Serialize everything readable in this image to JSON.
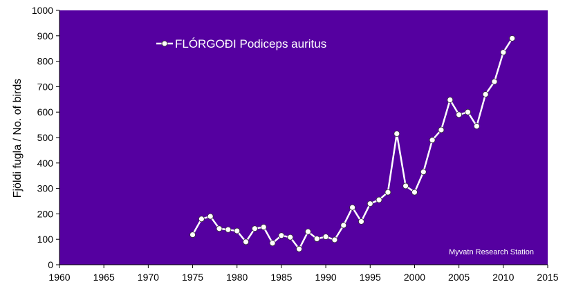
{
  "chart_data": {
    "type": "line",
    "legend_label": "FLÓRGOÐI Podiceps auritus",
    "legend_position": "top-left",
    "ylabel": "Fjöldi fugla / No. of birds",
    "xlabel": "",
    "credit": "Myvatn Research Station",
    "xlim": [
      1960,
      2015
    ],
    "ylim": [
      0,
      1000
    ],
    "x_ticks": [
      1960,
      1965,
      1970,
      1975,
      1980,
      1985,
      1990,
      1995,
      2000,
      2005,
      2010,
      2015
    ],
    "y_ticks": [
      0,
      100,
      200,
      300,
      400,
      500,
      600,
      700,
      800,
      900,
      1000
    ],
    "grid": false,
    "series": [
      {
        "name": "FLÓRGOÐI Podiceps auritus",
        "x": [
          1975,
          1976,
          1977,
          1978,
          1979,
          1980,
          1981,
          1982,
          1983,
          1984,
          1985,
          1986,
          1987,
          1988,
          1989,
          1990,
          1991,
          1992,
          1993,
          1994,
          1995,
          1996,
          1997,
          1998,
          1999,
          2000,
          2001,
          2002,
          2003,
          2004,
          2005,
          2006,
          2007,
          2008,
          2009,
          2010,
          2011
        ],
        "y": [
          118,
          180,
          190,
          142,
          138,
          133,
          90,
          142,
          148,
          85,
          115,
          108,
          62,
          130,
          102,
          110,
          98,
          155,
          225,
          170,
          240,
          255,
          285,
          515,
          310,
          285,
          365,
          490,
          530,
          648,
          590,
          600,
          545,
          670,
          720,
          835,
          890
        ]
      }
    ]
  },
  "colors": {
    "plot_background": "#5500a0",
    "line": "#ffffff",
    "marker_fill": "#ffffff",
    "marker_stroke": "#333333"
  }
}
